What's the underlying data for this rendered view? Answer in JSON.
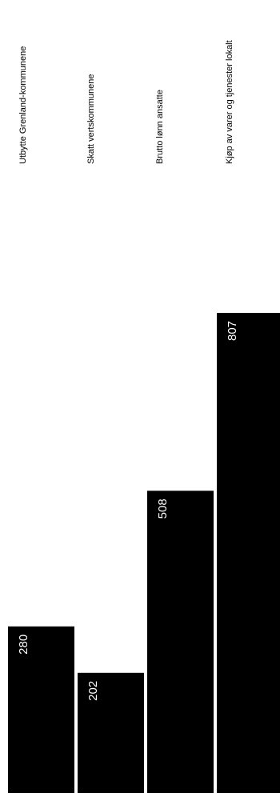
{
  "chart_data": {
    "type": "bar",
    "orientation": "rotated-90",
    "categories": [
      "Utbytte Grenland-kommunene",
      "Skatt vertskommunene",
      "Brutto lønn ansatte",
      "Kjøp av varer og tjenester lokalt"
    ],
    "values": [
      280,
      202,
      508,
      807
    ],
    "value_labels": [
      "280",
      "202",
      "508",
      "807"
    ],
    "bar_color": "#000000",
    "label_color": "#ffffff",
    "category_text_color": "#000000",
    "grid": false,
    "legend": "none"
  }
}
